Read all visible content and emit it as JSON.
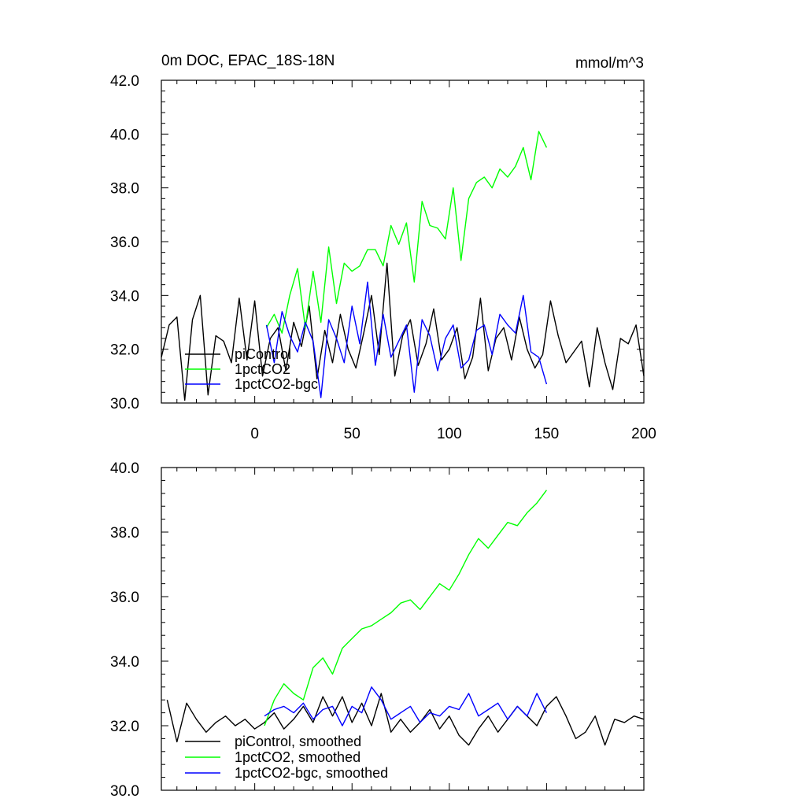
{
  "chart_data": [
    {
      "type": "line",
      "title": "0m DOC, EPAC_18S-18N",
      "units": "mmol/m^3",
      "xlabel": "",
      "ylabel": "",
      "xlim": [
        -48,
        200
      ],
      "ylim": [
        30,
        42
      ],
      "xticks": [
        0,
        50,
        100,
        150,
        200
      ],
      "xtick_labels": [
        "0",
        "50",
        "100",
        "150",
        "200"
      ],
      "yticks": [
        30,
        32,
        34,
        36,
        38,
        40,
        42
      ],
      "ytick_labels": [
        "30.0",
        "32.0",
        "34.0",
        "36.0",
        "38.0",
        "40.0",
        "42.0"
      ],
      "legend_position": "bottom-left",
      "series": [
        {
          "name": "piControl",
          "color": "#000000",
          "x": [
            -48,
            -44,
            -40,
            -36,
            -32,
            -28,
            -24,
            -20,
            -16,
            -12,
            -8,
            -4,
            0,
            4,
            8,
            12,
            16,
            20,
            24,
            28,
            32,
            36,
            40,
            44,
            48,
            52,
            56,
            60,
            64,
            68,
            72,
            76,
            80,
            84,
            88,
            92,
            96,
            100,
            104,
            108,
            112,
            116,
            120,
            124,
            128,
            132,
            136,
            140,
            144,
            148,
            152,
            156,
            160,
            164,
            168,
            172,
            176,
            180,
            184,
            188,
            192,
            196,
            200
          ],
          "y": [
            31.7,
            32.9,
            33.2,
            30.1,
            33.1,
            34.0,
            30.3,
            32.5,
            32.3,
            31.5,
            33.9,
            31.6,
            33.8,
            31.0,
            32.4,
            32.8,
            31.2,
            33.0,
            32.1,
            33.6,
            30.9,
            32.7,
            31.5,
            33.3,
            32.0,
            31.3,
            32.6,
            34.0,
            31.8,
            35.2,
            31.0,
            32.5,
            33.1,
            31.4,
            32.2,
            33.5,
            31.6,
            32.0,
            32.8,
            30.9,
            31.7,
            33.9,
            31.2,
            32.4,
            32.8,
            31.6,
            33.2,
            32.0,
            31.3,
            31.8,
            33.8,
            32.5,
            31.5,
            31.9,
            32.3,
            30.6,
            32.8,
            31.5,
            30.5,
            32.4,
            32.2,
            32.9,
            31.0
          ]
        },
        {
          "name": "1pctCO2",
          "color": "#00ff00",
          "x": [
            6,
            10,
            14,
            18,
            22,
            26,
            30,
            34,
            38,
            42,
            46,
            50,
            54,
            58,
            62,
            66,
            70,
            74,
            78,
            82,
            86,
            90,
            94,
            98,
            102,
            106,
            110,
            114,
            118,
            122,
            126,
            130,
            134,
            138,
            142,
            146,
            150
          ],
          "y": [
            32.8,
            33.3,
            32.6,
            34.0,
            35.0,
            32.8,
            34.9,
            33.0,
            35.8,
            33.7,
            35.2,
            34.9,
            35.1,
            35.7,
            35.7,
            35.1,
            36.6,
            35.9,
            36.7,
            34.5,
            37.5,
            36.6,
            36.5,
            36.1,
            38.0,
            35.3,
            37.6,
            38.2,
            38.4,
            38.0,
            38.7,
            38.4,
            38.8,
            39.5,
            38.3,
            40.1,
            39.5
          ]
        },
        {
          "name": "1pctCO2-bgc",
          "color": "#0000ff",
          "x": [
            6,
            10,
            14,
            18,
            22,
            26,
            30,
            34,
            38,
            42,
            46,
            50,
            54,
            58,
            62,
            66,
            70,
            74,
            78,
            82,
            86,
            90,
            94,
            98,
            102,
            106,
            110,
            114,
            118,
            122,
            126,
            130,
            134,
            138,
            142,
            146,
            150
          ],
          "y": [
            32.9,
            31.5,
            33.4,
            32.5,
            31.9,
            33.0,
            32.3,
            30.2,
            33.1,
            32.4,
            31.5,
            33.6,
            32.2,
            34.5,
            31.4,
            33.3,
            31.7,
            32.3,
            32.9,
            30.4,
            33.1,
            32.5,
            31.2,
            32.4,
            32.9,
            31.3,
            31.6,
            32.7,
            32.9,
            31.8,
            33.3,
            32.9,
            32.6,
            34.0,
            31.9,
            31.7,
            30.7
          ]
        }
      ]
    },
    {
      "type": "line",
      "title": "",
      "xlabel": "",
      "ylabel": "",
      "xlim": [
        -48,
        200
      ],
      "ylim": [
        30,
        40
      ],
      "xticks": [
        0,
        50,
        100,
        150,
        200
      ],
      "yticks": [
        30,
        32,
        34,
        36,
        38,
        40
      ],
      "ytick_labels": [
        "30.0",
        "32.0",
        "34.0",
        "36.0",
        "38.0",
        "40.0"
      ],
      "legend_position": "bottom-left",
      "series": [
        {
          "name": "piControl, smoothed",
          "color": "#000000",
          "x": [
            -45,
            -40,
            -35,
            -30,
            -25,
            -20,
            -15,
            -10,
            -5,
            0,
            5,
            10,
            15,
            20,
            25,
            30,
            35,
            40,
            45,
            50,
            55,
            60,
            65,
            70,
            75,
            80,
            85,
            90,
            95,
            100,
            105,
            110,
            115,
            120,
            125,
            130,
            135,
            140,
            145,
            150,
            155,
            160,
            165,
            170,
            175,
            180,
            185,
            190,
            195,
            200
          ],
          "y": [
            32.8,
            31.5,
            32.7,
            32.2,
            31.8,
            32.1,
            32.3,
            32.0,
            32.2,
            31.9,
            32.1,
            32.4,
            31.9,
            32.2,
            32.6,
            32.1,
            32.9,
            32.3,
            32.9,
            32.1,
            32.7,
            32.0,
            33.0,
            31.8,
            32.2,
            31.8,
            32.1,
            32.5,
            31.9,
            32.3,
            31.7,
            31.4,
            31.9,
            32.3,
            31.8,
            32.2,
            32.6,
            32.3,
            32.0,
            32.6,
            32.9,
            32.3,
            31.6,
            31.8,
            32.3,
            31.4,
            32.2,
            32.1,
            32.3,
            32.2
          ]
        },
        {
          "name": "1pctCO2, smoothed",
          "color": "#00ff00",
          "x": [
            5,
            10,
            15,
            20,
            25,
            30,
            35,
            40,
            45,
            50,
            55,
            60,
            65,
            70,
            75,
            80,
            85,
            90,
            95,
            100,
            105,
            110,
            115,
            120,
            125,
            130,
            135,
            140,
            145,
            150
          ],
          "y": [
            32.0,
            32.8,
            33.3,
            33.0,
            32.8,
            33.8,
            34.1,
            33.6,
            34.4,
            34.7,
            35.0,
            35.1,
            35.3,
            35.5,
            35.8,
            35.9,
            35.6,
            36.0,
            36.4,
            36.2,
            36.7,
            37.3,
            37.8,
            37.5,
            37.9,
            38.3,
            38.2,
            38.6,
            38.9,
            39.3
          ]
        },
        {
          "name": "1pctCO2-bgc, smoothed",
          "color": "#0000ff",
          "x": [
            5,
            10,
            15,
            20,
            25,
            30,
            35,
            40,
            45,
            50,
            55,
            60,
            65,
            70,
            75,
            80,
            85,
            90,
            95,
            100,
            105,
            110,
            115,
            120,
            125,
            130,
            135,
            140,
            145,
            150
          ],
          "y": [
            32.3,
            32.5,
            32.6,
            32.4,
            32.7,
            32.2,
            32.5,
            32.6,
            32.0,
            32.6,
            32.4,
            33.2,
            32.8,
            32.2,
            32.4,
            32.6,
            32.1,
            32.4,
            32.3,
            32.6,
            32.5,
            33.0,
            32.3,
            32.5,
            32.7,
            32.2,
            32.6,
            32.3,
            33.0,
            32.4
          ]
        }
      ]
    }
  ]
}
